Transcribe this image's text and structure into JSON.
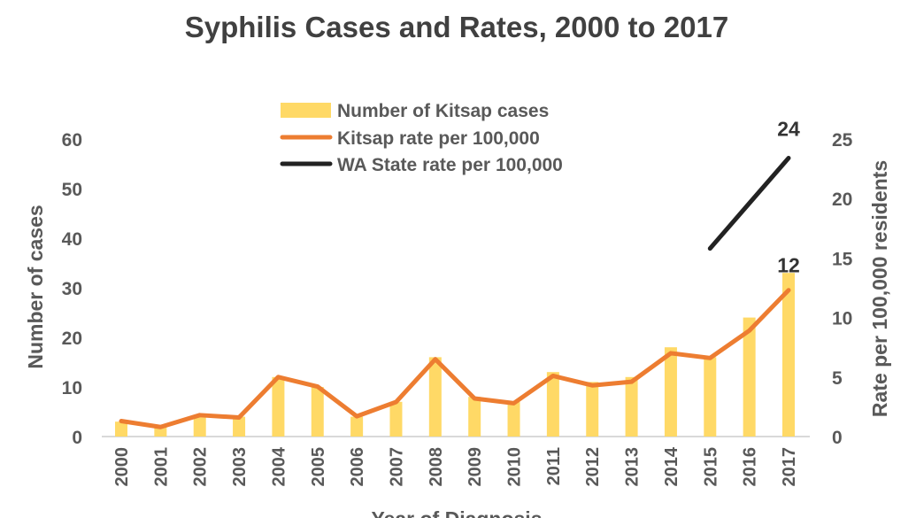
{
  "chart_data": {
    "type": "bar+line",
    "title": "Syphilis Cases and Rates, 2000 to 2017",
    "xlabel": "Year of Diagnosis",
    "ylabel_left": "Number of cases",
    "ylabel_right": "Rate per 100,000 residents",
    "ylim_left": [
      0,
      60
    ],
    "yticks_left": [
      "0",
      "10",
      "20",
      "30",
      "40",
      "50",
      "60"
    ],
    "ylim_right": [
      0,
      25
    ],
    "yticks_right": [
      "0",
      "5",
      "10",
      "15",
      "20",
      "25"
    ],
    "grid": false,
    "legend_position": "top-center",
    "categories": [
      "2000",
      "2001",
      "2002",
      "2003",
      "2004",
      "2005",
      "2006",
      "2007",
      "2008",
      "2009",
      "2010",
      "2011",
      "2012",
      "2013",
      "2014",
      "2015",
      "2016",
      "2017"
    ],
    "series": [
      {
        "name": "Number of Kitsap cases",
        "kind": "bar",
        "axis": "left",
        "color": "#FFD966",
        "values": [
          3,
          2,
          4,
          4,
          12,
          10,
          4,
          7,
          16,
          8,
          7,
          13,
          11,
          12,
          18,
          16,
          24,
          33
        ]
      },
      {
        "name": "Kitsap rate per 100,000",
        "kind": "line",
        "axis": "right",
        "color": "#ED7D31",
        "values": [
          1.3,
          0.8,
          1.8,
          1.6,
          5.0,
          4.2,
          1.7,
          2.9,
          6.5,
          3.2,
          2.8,
          5.1,
          4.3,
          4.6,
          7.0,
          6.6,
          8.9,
          12.3
        ]
      },
      {
        "name": "WA State rate per 100,000",
        "kind": "line",
        "axis": "right",
        "color": "#222222",
        "values": [
          null,
          null,
          null,
          null,
          null,
          null,
          null,
          null,
          null,
          null,
          null,
          null,
          null,
          null,
          null,
          15.8,
          19.6,
          23.4
        ]
      }
    ],
    "annotations": [
      {
        "text": "24",
        "series": "WA State rate per 100,000",
        "category": "2017"
      },
      {
        "text": "12",
        "series": "Kitsap rate per 100,000",
        "category": "2017"
      }
    ]
  }
}
